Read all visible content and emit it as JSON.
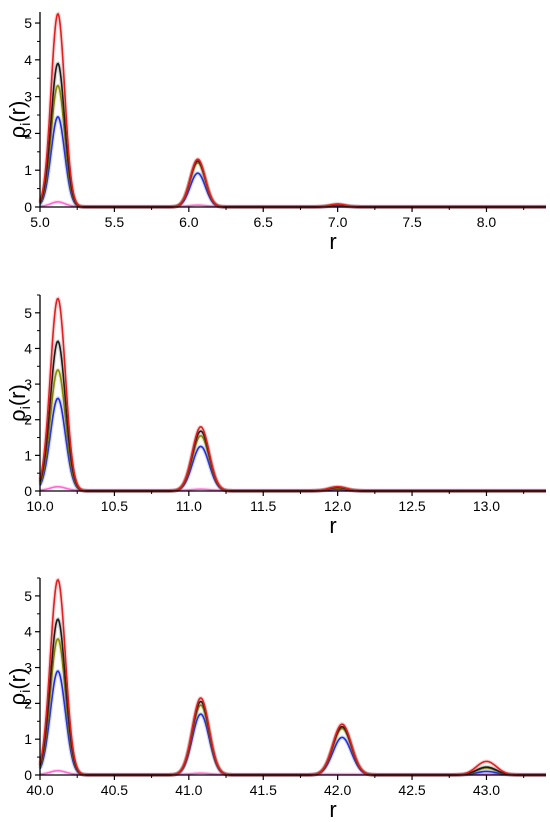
{
  "chart_data": [
    {
      "type": "line",
      "ylabel": "ρ",
      "ylabel_sub": "i",
      "ylabel_suffix": "(r)",
      "xlabel": "r",
      "xlim": [
        5.0,
        8.4
      ],
      "ylim": [
        0,
        5.3
      ],
      "xticks": [
        "5.0",
        "5.5",
        "6.0",
        "6.5",
        "7.0",
        "7.5",
        "8.0"
      ],
      "yticks": [
        "0",
        "1",
        "2",
        "3",
        "4",
        "5"
      ],
      "peak_width": 0.045,
      "series": [
        {
          "color": "#ff69d4",
          "peaks": [
            [
              5.12,
              0.12
            ],
            [
              6.06,
              0.03
            ]
          ],
          "base": 0.02
        },
        {
          "color": "#1f2fe0",
          "peaks": [
            [
              5.12,
              2.45
            ],
            [
              6.06,
              0.92
            ],
            [
              7.0,
              0.03
            ]
          ],
          "base": 0.0
        },
        {
          "color": "#8b8b00",
          "peaks": [
            [
              5.12,
              3.3
            ],
            [
              6.06,
              1.2
            ],
            [
              7.0,
              0.05
            ]
          ],
          "base": 0.0
        },
        {
          "color": "#1a1a1a",
          "peaks": [
            [
              5.12,
              3.9
            ],
            [
              6.06,
              1.25
            ],
            [
              7.0,
              0.06
            ]
          ],
          "base": 0.0
        },
        {
          "color": "#e02020",
          "peaks": [
            [
              5.12,
              5.25
            ],
            [
              6.06,
              1.3
            ],
            [
              7.0,
              0.08
            ]
          ],
          "base": 0.0
        }
      ]
    },
    {
      "type": "line",
      "ylabel": "ρ",
      "ylabel_sub": "i",
      "ylabel_suffix": "(r)",
      "xlabel": "r",
      "xlim": [
        10.0,
        13.4
      ],
      "ylim": [
        0,
        5.5
      ],
      "xticks": [
        "10.0",
        "10.5",
        "11.0",
        "11.5",
        "12.0",
        "12.5",
        "13.0"
      ],
      "yticks": [
        "0",
        "1",
        "2",
        "3",
        "4",
        "5"
      ],
      "peak_width": 0.05,
      "series": [
        {
          "color": "#ff69d4",
          "peaks": [
            [
              10.12,
              0.1
            ],
            [
              11.08,
              0.03
            ]
          ],
          "base": 0.02
        },
        {
          "color": "#1f2fe0",
          "peaks": [
            [
              10.12,
              2.6
            ],
            [
              11.08,
              1.25
            ],
            [
              12.0,
              0.05
            ]
          ],
          "base": 0.0
        },
        {
          "color": "#8b8b00",
          "peaks": [
            [
              10.12,
              3.4
            ],
            [
              11.08,
              1.55
            ],
            [
              12.0,
              0.08
            ]
          ],
          "base": 0.0
        },
        {
          "color": "#1a1a1a",
          "peaks": [
            [
              10.12,
              4.2
            ],
            [
              11.08,
              1.68
            ],
            [
              12.0,
              0.1
            ]
          ],
          "base": 0.0
        },
        {
          "color": "#e02020",
          "peaks": [
            [
              10.12,
              5.4
            ],
            [
              11.08,
              1.8
            ],
            [
              12.0,
              0.12
            ]
          ],
          "base": 0.0
        }
      ]
    },
    {
      "type": "line",
      "ylabel": "ρ",
      "ylabel_sub": "i",
      "ylabel_suffix": "(r)",
      "xlabel": "r",
      "xlim": [
        40.0,
        43.4
      ],
      "ylim": [
        0,
        5.5
      ],
      "xticks": [
        "40.0",
        "40.5",
        "41.0",
        "41.5",
        "42.0",
        "42.5",
        "43.0"
      ],
      "yticks": [
        "0",
        "1",
        "2",
        "3",
        "4",
        "5"
      ],
      "peak_width": 0.05,
      "series": [
        {
          "color": "#ff69d4",
          "peaks": [
            [
              40.12,
              0.1
            ],
            [
              41.08,
              0.03
            ]
          ],
          "base": 0.02
        },
        {
          "color": "#1f2fe0",
          "peaks": [
            [
              40.12,
              2.9
            ],
            [
              41.08,
              1.7
            ],
            [
              42.03,
              1.05
            ],
            [
              43.0,
              0.1
            ]
          ],
          "base": 0.0
        },
        {
          "color": "#8b8b00",
          "peaks": [
            [
              40.12,
              3.8
            ],
            [
              41.08,
              1.95
            ],
            [
              42.03,
              1.3
            ],
            [
              43.0,
              0.2
            ]
          ],
          "base": 0.0
        },
        {
          "color": "#1a1a1a",
          "peaks": [
            [
              40.12,
              4.35
            ],
            [
              41.08,
              2.05
            ],
            [
              42.03,
              1.35
            ],
            [
              43.0,
              0.22
            ]
          ],
          "base": 0.0
        },
        {
          "color": "#e02020",
          "peaks": [
            [
              40.12,
              5.45
            ],
            [
              41.08,
              2.15
            ],
            [
              42.03,
              1.42
            ],
            [
              43.0,
              0.38
            ]
          ],
          "base": 0.0
        }
      ]
    }
  ]
}
